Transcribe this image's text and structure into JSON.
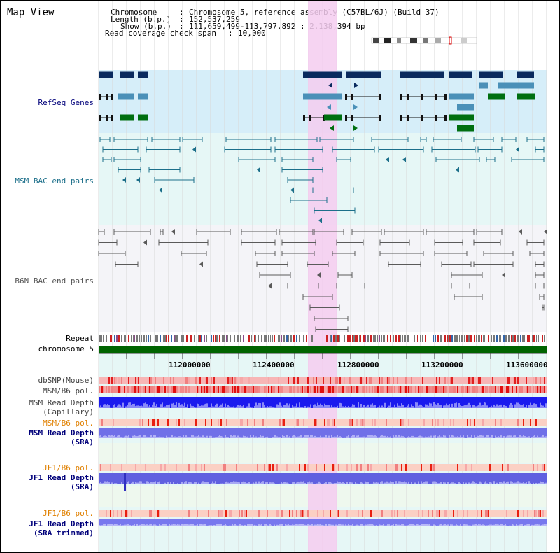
{
  "title": "Map View",
  "header": {
    "chromosome_label": "Chromosome",
    "chromosome_value": "Chromosome 5, reference assembly (C57BL/6J) (Build 37)",
    "length_label": "Length (b.p.)",
    "length_value": "152,537,259",
    "show_label": "Show (b.p.)",
    "show_value": "111,659,499-113,797,892 : 2,138,394 bp",
    "coverage_label": "Read coverage check span",
    "coverage_value": "10,000",
    "separator": ":"
  },
  "tracks": {
    "refseq": "RefSeq Genes",
    "msm_bac": "MSM BAC end pairs",
    "b6n_bac": "B6N BAC end pairs",
    "repeat": "Repeat",
    "chromosome": "chromosome 5",
    "dbsnp": "dbSNP(Mouse)",
    "msm_b6_pol": "MSM/B6 pol.",
    "msm_depth_cap_1": "MSM Read Depth",
    "msm_depth_cap_2": "(Capillary)",
    "msm_b6_pol2": "MSM/B6 pol.",
    "msm_depth_sra_1": "MSM Read Depth",
    "msm_depth_sra_2": "(SRA)",
    "jf1_b6_pol": "JF1/B6 pol.",
    "jf1_depth_sra_1": "JF1 Read Depth",
    "jf1_depth_sra_2": "(SRA)",
    "jf1_b6_pol2": "JF1/B6 pol.",
    "jf1_depth_trim_1": "JF1 Read Depth",
    "jf1_depth_trim_2": "(SRA trimmed)"
  },
  "axis": {
    "ticks": [
      "112000000",
      "112400000",
      "112800000",
      "113200000",
      "113600000"
    ]
  },
  "colors": {
    "refseq_bg": "#d6eef9",
    "msm_bg": "#e6f7f6",
    "highlight": "#f5cdf0",
    "gene_navy": "#0a2a5e",
    "gene_blue": "#4a90b8",
    "gene_green": "#006f10",
    "msm_line": "#1c6f8a",
    "b6n_line": "#5a5a5a",
    "chrom_green": "#006400",
    "label_blue": "#00007a",
    "label_orange": "#e08000",
    "label_teal": "#1c6f8a"
  }
}
